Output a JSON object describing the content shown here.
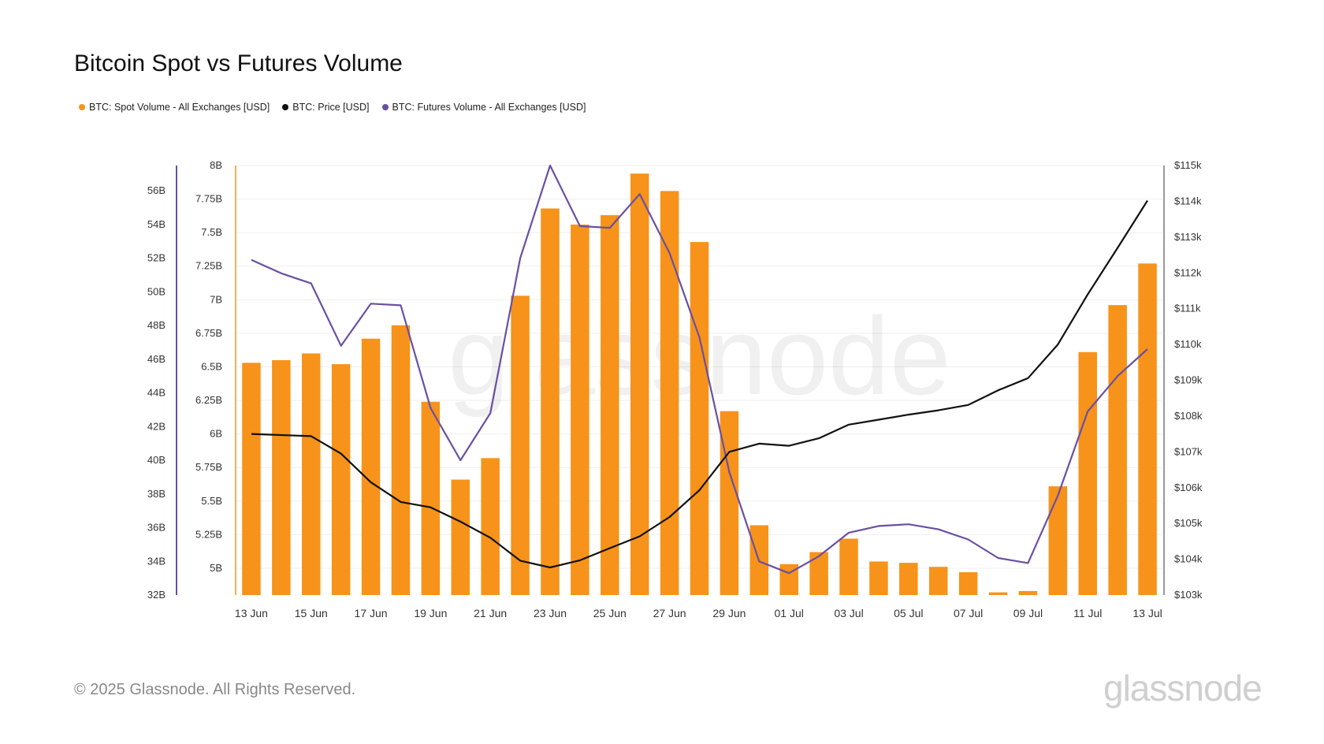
{
  "title": "Bitcoin Spot vs Futures Volume",
  "legend": [
    {
      "label": "BTC: Spot Volume - All Exchanges [USD]",
      "color": "#f7931a"
    },
    {
      "label": "BTC: Price [USD]",
      "color": "#111111"
    },
    {
      "label": "BTC: Futures Volume - All Exchanges [USD]",
      "color": "#6a4fa3"
    }
  ],
  "watermark": "glassnode",
  "footer": {
    "copyright": "© 2025 Glassnode. All Rights Reserved.",
    "brand": "glassnode"
  },
  "chart_data": {
    "type": "bar",
    "title": "Bitcoin Spot vs Futures Volume",
    "categories": [
      "13 Jun",
      "14 Jun",
      "15 Jun",
      "16 Jun",
      "17 Jun",
      "18 Jun",
      "19 Jun",
      "20 Jun",
      "21 Jun",
      "22 Jun",
      "23 Jun",
      "24 Jun",
      "25 Jun",
      "26 Jun",
      "27 Jun",
      "28 Jun",
      "29 Jun",
      "30 Jun",
      "01 Jul",
      "02 Jul",
      "03 Jul",
      "04 Jul",
      "05 Jul",
      "06 Jul",
      "07 Jul",
      "08 Jul",
      "09 Jul",
      "10 Jul",
      "11 Jul",
      "12 Jul",
      "13 Jul"
    ],
    "x_tick_labels": [
      "13 Jun",
      "15 Jun",
      "17 Jun",
      "19 Jun",
      "21 Jun",
      "23 Jun",
      "25 Jun",
      "27 Jun",
      "29 Jun",
      "01 Jul",
      "03 Jul",
      "05 Jul",
      "07 Jul",
      "09 Jul",
      "11 Jul",
      "13 Jul"
    ],
    "series": [
      {
        "name": "BTC: Spot Volume - All Exchanges [USD]",
        "type": "bar",
        "axis": "spot",
        "color": "#f7931a",
        "values": [
          6.53,
          6.55,
          6.6,
          6.52,
          6.71,
          6.81,
          6.24,
          5.66,
          5.82,
          7.03,
          7.68,
          7.56,
          7.63,
          7.94,
          7.81,
          7.43,
          6.17,
          5.32,
          5.03,
          5.12,
          5.22,
          5.05,
          5.04,
          5.01,
          4.97,
          4.82,
          4.83,
          5.61,
          6.61,
          6.96,
          7.27
        ]
      },
      {
        "name": "BTC: Price [USD]",
        "type": "line",
        "axis": "price",
        "color": "#111111",
        "values": [
          107500,
          107470,
          107440,
          106950,
          106150,
          105600,
          105450,
          105050,
          104600,
          103960,
          103770,
          103970,
          104310,
          104640,
          105180,
          105930,
          107000,
          107230,
          107170,
          107380,
          107760,
          107900,
          108040,
          108160,
          108310,
          108720,
          109060,
          110000,
          111400,
          112700,
          114020
        ]
      },
      {
        "name": "BTC: Futures Volume - All Exchanges [USD]",
        "type": "line",
        "axis": "futures",
        "color": "#6a4fa3",
        "values": [
          51.9,
          51.1,
          50.5,
          46.8,
          49.3,
          49.2,
          43.1,
          40.0,
          42.8,
          52.0,
          57.5,
          53.9,
          53.8,
          55.8,
          52.3,
          47.3,
          39.3,
          34.0,
          33.3,
          34.3,
          35.7,
          36.1,
          36.2,
          35.9,
          35.3,
          34.2,
          33.9,
          37.9,
          42.9,
          45.0,
          46.6
        ]
      }
    ],
    "axes": {
      "spot": {
        "side": "left-inner",
        "ylim": [
          4.8,
          8.0
        ],
        "ticks": [
          "8B",
          "7.75B",
          "7.5B",
          "7.25B",
          "7B",
          "6.75B",
          "6.5B",
          "6.25B",
          "6B",
          "5.75B",
          "5.5B",
          "5.25B",
          "5B"
        ],
        "tick_values": [
          8.0,
          7.75,
          7.5,
          7.25,
          7.0,
          6.75,
          6.5,
          6.25,
          6.0,
          5.75,
          5.5,
          5.25,
          5.0
        ],
        "color": "#f7931a"
      },
      "futures": {
        "side": "left-outer",
        "ylim": [
          32,
          57.5
        ],
        "ticks": [
          "56B",
          "54B",
          "52B",
          "50B",
          "48B",
          "46B",
          "44B",
          "42B",
          "40B",
          "38B",
          "36B",
          "34B",
          "32B"
        ],
        "tick_values": [
          56,
          54,
          52,
          50,
          48,
          46,
          44,
          42,
          40,
          38,
          36,
          34,
          32
        ],
        "color": "#6a4fa3"
      },
      "price": {
        "side": "right",
        "ylim": [
          103000,
          115000
        ],
        "ticks": [
          "$115k",
          "$114k",
          "$113k",
          "$112k",
          "$111k",
          "$110k",
          "$109k",
          "$108k",
          "$107k",
          "$106k",
          "$105k",
          "$104k",
          "$103k"
        ],
        "tick_values": [
          115000,
          114000,
          113000,
          112000,
          111000,
          110000,
          109000,
          108000,
          107000,
          106000,
          105000,
          104000,
          103000
        ],
        "color": "#111111"
      }
    },
    "grid": true,
    "legend_position": "top-left"
  }
}
